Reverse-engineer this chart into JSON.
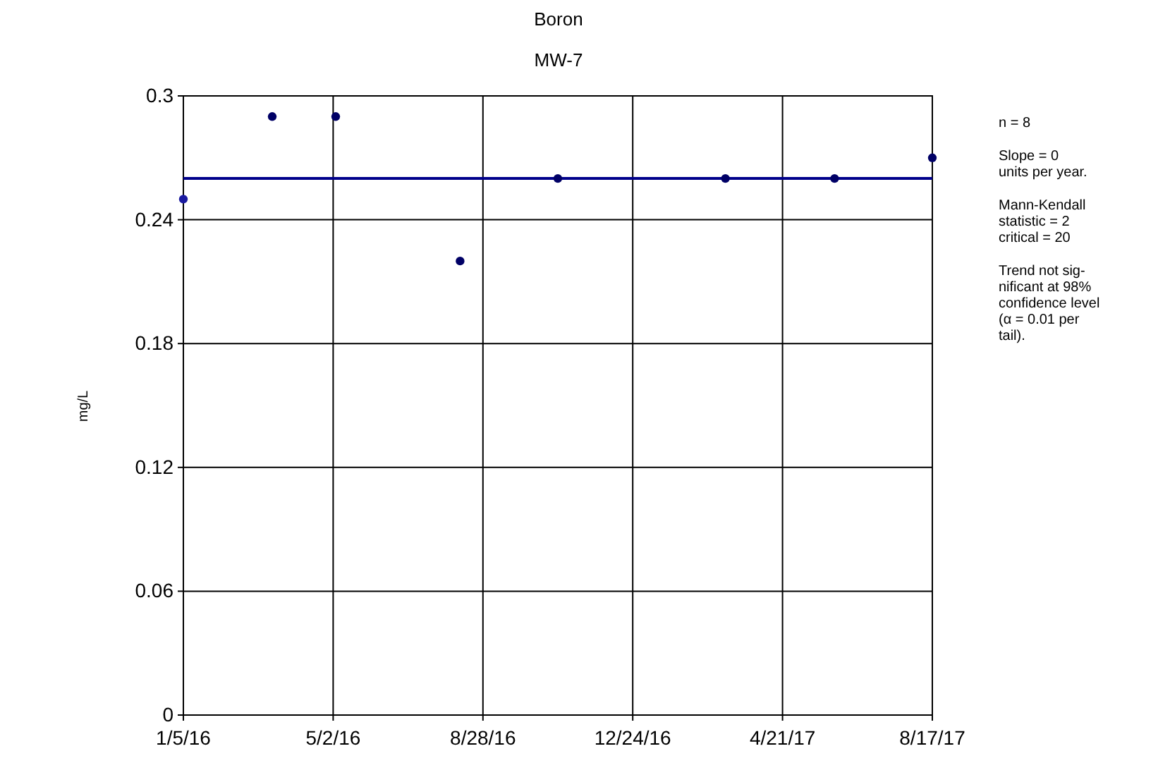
{
  "chart_data": {
    "type": "scatter",
    "title": "Boron",
    "subtitle": "MW-7",
    "ylabel": "mg/L",
    "xlim": [
      "2016-01-05",
      "2017-08-17"
    ],
    "xticks": [
      {
        "value": "2016-01-05",
        "label": "1/5/16"
      },
      {
        "value": "2016-05-02",
        "label": "5/2/16"
      },
      {
        "value": "2016-08-28",
        "label": "8/28/16"
      },
      {
        "value": "2016-12-24",
        "label": "12/24/16"
      },
      {
        "value": "2017-04-21",
        "label": "4/21/17"
      },
      {
        "value": "2017-08-17",
        "label": "8/17/17"
      }
    ],
    "ylim": [
      0,
      0.3
    ],
    "yticks": [
      0,
      0.06,
      0.12,
      0.18,
      0.24,
      0.3
    ],
    "grid": true,
    "marker": "circle",
    "series": [
      {
        "type": "line",
        "marker": "none",
        "color": "#00008b",
        "x": [
          "2016-01-05",
          "2017-08-17"
        ],
        "values": [
          0.26,
          0.26
        ]
      },
      {
        "color": "#1a1aa0",
        "x": [
          "2016-01-05"
        ],
        "values": [
          0.25
        ]
      },
      {
        "color": "#000066",
        "x": [
          "2016-03-15",
          "2016-05-04",
          "2016-08-10",
          "2016-10-26",
          "2017-03-07",
          "2017-06-01",
          "2017-08-17"
        ],
        "values": [
          0.29,
          0.29,
          0.22,
          0.26,
          0.26,
          0.26,
          0.27
        ]
      }
    ],
    "annotations": [
      "n = 8",
      "Slope = 0\nunits per year.",
      "Mann-Kendall\nstatistic = 2\ncritical = 20",
      "Trend not sig-\nnificant at 98%\nconfidence level\n(α = 0.01 per\ntail)."
    ]
  }
}
